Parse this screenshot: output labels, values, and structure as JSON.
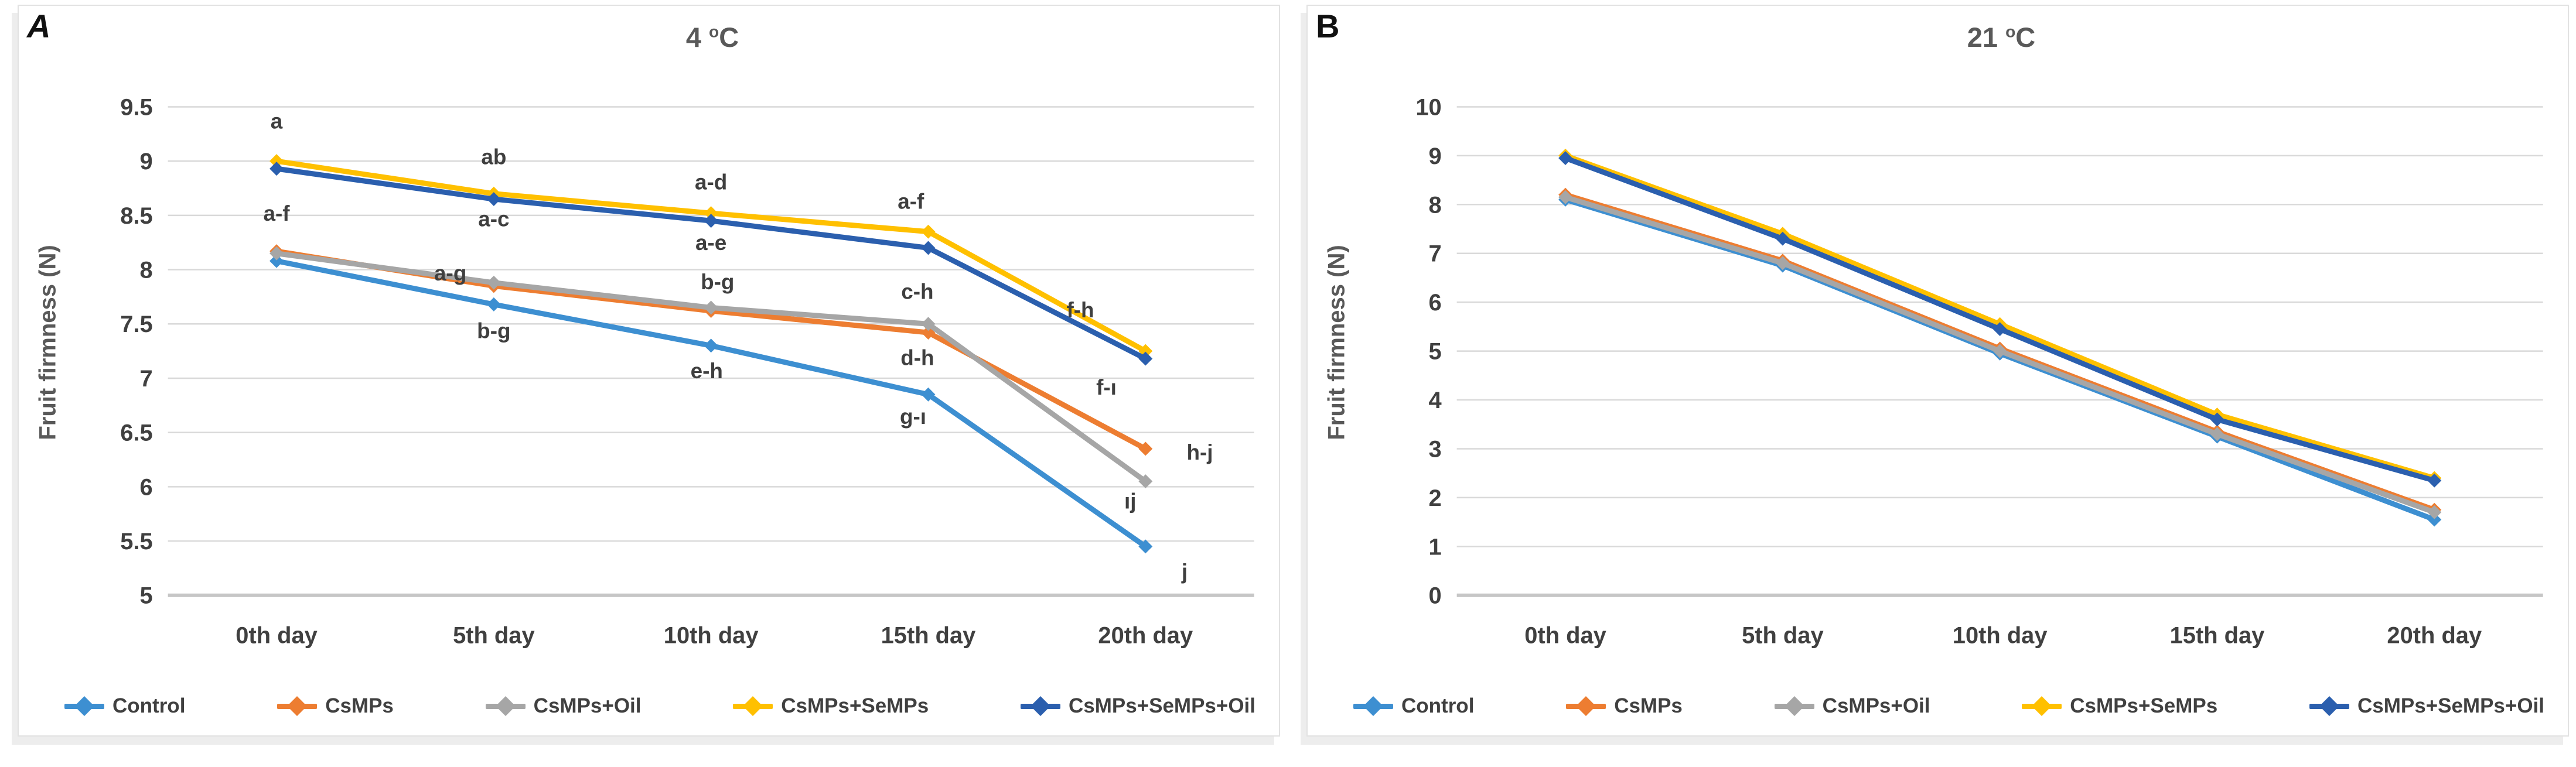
{
  "figure_title": "Fruit firmness line charts",
  "y_axis_label": "Fruit firmness (N)",
  "colors": {
    "control": "#3D8FD1",
    "csmps": "#ED7D31",
    "csmps_oil": "#A6A6A6",
    "csmps_semps": "#FFC000",
    "csmps_semps_oil": "#2B5FAE",
    "gridline": "#D9D9D9",
    "axis_line": "#C6C6C6",
    "tick_text": "#404040",
    "annotation_text": "#3F3F3F",
    "title_text": "#595959"
  },
  "chart_data": [
    {
      "type": "line",
      "panel_label": "A",
      "title": "4 °C",
      "title_value": "4",
      "title_degree": "o",
      "title_unit": "C",
      "xlabel": "",
      "ylabel": "Fruit firmness (N)",
      "ylim": [
        5,
        9.5
      ],
      "ystep": 0.5,
      "grid": true,
      "legend_position": "bottom",
      "categories": [
        "0th day",
        "5th day",
        "10th day",
        "15th day",
        "20th day"
      ],
      "series": [
        {
          "name": "Control",
          "color": "#3D8FD1",
          "values": [
            8.08,
            7.68,
            7.3,
            6.85,
            5.45
          ]
        },
        {
          "name": "CsMPs",
          "color": "#ED7D31",
          "values": [
            8.17,
            7.85,
            7.62,
            7.42,
            6.35
          ]
        },
        {
          "name": "CsMPs+Oil",
          "color": "#A6A6A6",
          "values": [
            8.15,
            7.88,
            7.65,
            7.5,
            6.05
          ]
        },
        {
          "name": "CsMPs+SeMPs",
          "color": "#FFC000",
          "values": [
            9.0,
            8.7,
            8.52,
            8.35,
            7.25
          ]
        },
        {
          "name": "CsMPs+SeMPs+Oil",
          "color": "#2B5FAE",
          "values": [
            8.93,
            8.65,
            8.45,
            8.2,
            7.18
          ]
        }
      ],
      "annotations": [
        {
          "text": "a",
          "x": 0.0,
          "y": 9.3
        },
        {
          "text": "a-f",
          "x": 0.0,
          "y": 8.45
        },
        {
          "text": "ab",
          "x": 1.0,
          "y": 8.97
        },
        {
          "text": "a-c",
          "x": 1.0,
          "y": 8.4
        },
        {
          "text": "a-g",
          "x": 0.8,
          "y": 7.9
        },
        {
          "text": "b-g",
          "x": 1.0,
          "y": 7.37
        },
        {
          "text": "a-d",
          "x": 2.0,
          "y": 8.74
        },
        {
          "text": "a-e",
          "x": 2.0,
          "y": 8.18
        },
        {
          "text": "b-g",
          "x": 2.03,
          "y": 7.82
        },
        {
          "text": "e-h",
          "x": 1.98,
          "y": 7.0
        },
        {
          "text": "a-f",
          "x": 2.92,
          "y": 8.56
        },
        {
          "text": "c-h",
          "x": 2.95,
          "y": 7.73
        },
        {
          "text": "d-h",
          "x": 2.95,
          "y": 7.12
        },
        {
          "text": "g-ı",
          "x": 2.93,
          "y": 6.58
        },
        {
          "text": "f-h",
          "x": 3.7,
          "y": 7.56
        },
        {
          "text": "f-ı",
          "x": 3.82,
          "y": 6.85
        },
        {
          "text": "h-j",
          "x": 4.25,
          "y": 6.25
        },
        {
          "text": "ıj",
          "x": 3.93,
          "y": 5.8
        },
        {
          "text": "j",
          "x": 4.18,
          "y": 5.15
        }
      ]
    },
    {
      "type": "line",
      "panel_label": "B",
      "title": "21 °C",
      "title_value": "21",
      "title_degree": "o",
      "title_unit": "C",
      "xlabel": "",
      "ylabel": "Fruit firmness (N)",
      "ylim": [
        0,
        10
      ],
      "ystep": 1,
      "grid": true,
      "legend_position": "bottom",
      "categories": [
        "0th day",
        "5th day",
        "10th day",
        "15th day",
        "20th day"
      ],
      "series": [
        {
          "name": "Control",
          "color": "#3D8FD1",
          "values": [
            8.1,
            6.75,
            4.95,
            3.25,
            1.55
          ]
        },
        {
          "name": "CsMPs",
          "color": "#ED7D31",
          "values": [
            8.2,
            6.85,
            5.05,
            3.35,
            1.75
          ]
        },
        {
          "name": "CsMPs+Oil",
          "color": "#A6A6A6",
          "values": [
            8.15,
            6.8,
            5.0,
            3.3,
            1.7
          ]
        },
        {
          "name": "CsMPs+SeMPs",
          "color": "#FFC000",
          "values": [
            9.0,
            7.4,
            5.55,
            3.7,
            2.4
          ]
        },
        {
          "name": "CsMPs+SeMPs+Oil",
          "color": "#2B5FAE",
          "values": [
            8.95,
            7.3,
            5.45,
            3.6,
            2.35
          ]
        }
      ],
      "annotations": []
    }
  ]
}
